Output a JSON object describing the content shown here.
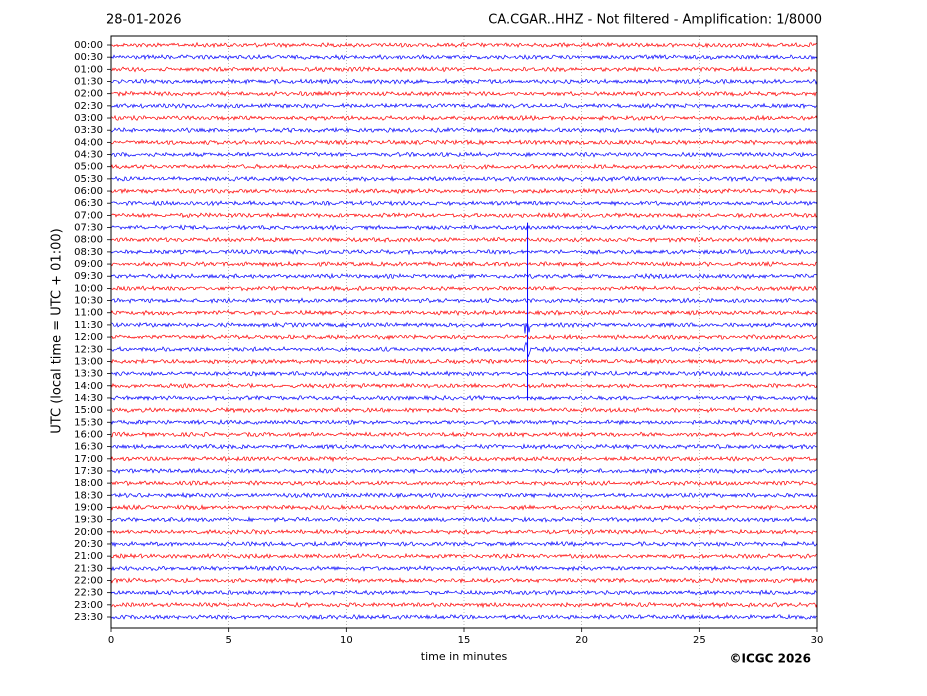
{
  "chart_data": {
    "type": "helicorder",
    "date": "28-01-2026",
    "title": "CA.CGAR..HHZ - Not filtered - Amplification: 1/8000",
    "y_label": "UTC (local time = UTC + 01:00)",
    "x_label": "time in minutes",
    "copyright": "©ICGC 2026",
    "rows": [
      "00:00",
      "00:30",
      "01:00",
      "01:30",
      "02:00",
      "02:30",
      "03:00",
      "03:30",
      "04:00",
      "04:30",
      "05:00",
      "05:30",
      "06:00",
      "06:30",
      "07:00",
      "07:30",
      "08:00",
      "08:30",
      "09:00",
      "09:30",
      "10:00",
      "10:30",
      "11:00",
      "11:30",
      "12:00",
      "12:30",
      "13:00",
      "13:30",
      "14:00",
      "14:30",
      "15:00",
      "15:30",
      "16:00",
      "16:30",
      "17:00",
      "17:30",
      "18:00",
      "18:30",
      "19:00",
      "19:30",
      "20:00",
      "20:30",
      "21:00",
      "21:30",
      "22:00",
      "22:30",
      "23:00",
      "23:30"
    ],
    "colors": [
      "#ff0000",
      "#0000ff"
    ],
    "xlim": [
      0,
      30
    ],
    "xticks": [
      0,
      5,
      10,
      15,
      20,
      25,
      30
    ],
    "grid": true
  }
}
